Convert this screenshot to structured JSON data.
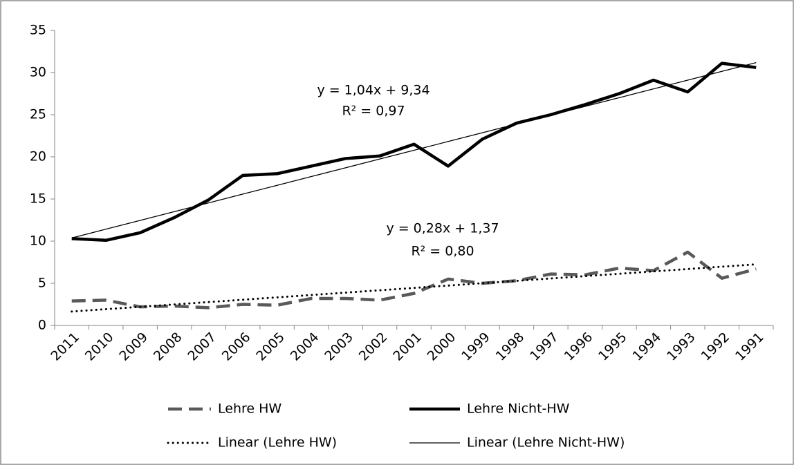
{
  "chart_data": {
    "type": "line",
    "categories": [
      "2011",
      "2010",
      "2009",
      "2008",
      "2007",
      "2006",
      "2005",
      "2004",
      "2003",
      "2002",
      "2001",
      "2000",
      "1999",
      "1998",
      "1997",
      "1996",
      "1995",
      "1994",
      "1993",
      "1992",
      "1991"
    ],
    "series": [
      {
        "name": "Lehre HW",
        "color": "#595959",
        "style": "dashed",
        "values": [
          2.9,
          3.0,
          2.2,
          2.3,
          2.1,
          2.5,
          2.4,
          3.2,
          3.2,
          3.0,
          3.8,
          5.5,
          5.0,
          5.3,
          6.1,
          6.0,
          6.8,
          6.5,
          8.7,
          5.6,
          6.7
        ]
      },
      {
        "name": "Lehre Nicht-HW",
        "color": "#000000",
        "style": "thick",
        "values": [
          10.3,
          10.1,
          11.0,
          12.8,
          14.9,
          17.8,
          18.0,
          18.9,
          19.8,
          20.1,
          21.5,
          18.9,
          22.1,
          24.0,
          25.0,
          26.2,
          27.5,
          29.1,
          27.7,
          31.1,
          30.6
        ]
      },
      {
        "name": "Linear (Lehre HW)",
        "color": "#000000",
        "style": "dotted",
        "values": [
          1.65,
          1.93,
          2.21,
          2.49,
          2.77,
          3.05,
          3.33,
          3.61,
          3.89,
          4.17,
          4.45,
          4.73,
          5.01,
          5.29,
          5.57,
          5.85,
          6.13,
          6.41,
          6.69,
          6.97,
          7.25
        ]
      },
      {
        "name": "Linear (Lehre Nicht-HW)",
        "color": "#000000",
        "style": "thin",
        "values": [
          10.38,
          11.42,
          12.46,
          13.5,
          14.54,
          15.58,
          16.62,
          17.66,
          18.7,
          19.74,
          20.78,
          21.82,
          22.86,
          23.9,
          24.94,
          25.98,
          27.02,
          28.06,
          29.1,
          30.14,
          31.18
        ]
      }
    ],
    "annotations": [
      "y = 1,04x + 9,34",
      "R² = 0,97",
      "y = 0,28x + 1,37",
      "R² = 0,80"
    ],
    "ylim": [
      0,
      35
    ],
    "yticks": [
      0,
      5,
      10,
      15,
      20,
      25,
      30,
      35
    ],
    "grid": false
  }
}
